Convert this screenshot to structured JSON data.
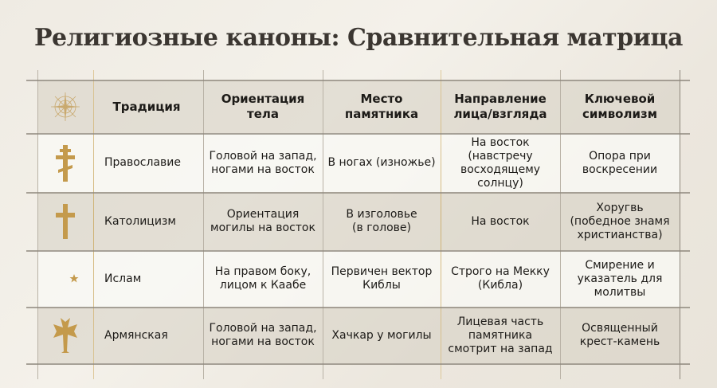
{
  "title": "Религиозные каноны: Сравнительная матрица",
  "header": {
    "icon": "compass-rose-icon",
    "columns": [
      "Традиция",
      "Ориентация\nтела",
      "Место\nпамятника",
      "Направление\nлица/взгляда",
      "Ключевой\nсимволизм"
    ]
  },
  "rows": [
    {
      "icon": "orthodox-cross-icon",
      "tradition": "Православие",
      "body": "Головой на запад,\nногами на восток",
      "monument": "В ногах (изножье)",
      "face": "На восток\n(навстречу\nвосходящему\nсолнцу)",
      "symbolism": "Опора при\nвоскресении"
    },
    {
      "icon": "latin-cross-icon",
      "tradition": "Католицизм",
      "body": "Ориентация\nмогилы на восток",
      "monument": "В изголовье\n(в голове)",
      "face": "На восток",
      "symbolism": "Хоругвь\n(победное знамя\nхристианства)"
    },
    {
      "icon": "crescent-star-icon",
      "tradition": "Ислам",
      "body": "На правом боку,\nлицом к Каабе",
      "monument": "Первичен вектор\nКиблы",
      "face": "Строго на Мекку\n(Кибла)",
      "symbolism": "Смирение и\nуказатель для\nмолитвы"
    },
    {
      "icon": "armenian-cross-icon",
      "tradition": "Армянская",
      "body": "Головой на запад,\nногами на восток",
      "monument": "Хачкар у могилы",
      "face": "Лицевая часть\nпамятника\nсмотрит на запад",
      "symbolism": "Освященный\nкрест-камень"
    }
  ],
  "colors": {
    "gold": "#c9a45c",
    "title": "#3b3631"
  }
}
